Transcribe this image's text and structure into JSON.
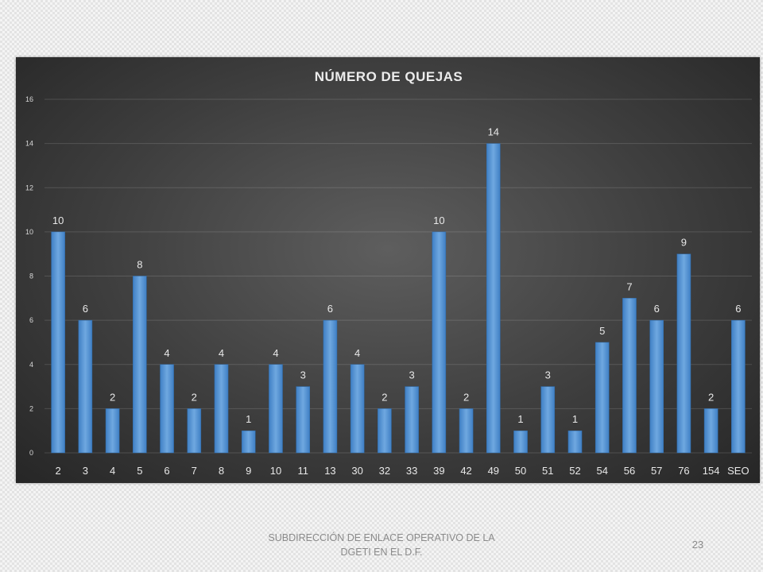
{
  "chart_data": {
    "type": "bar",
    "title": "NÚMERO DE QUEJAS",
    "categories": [
      "2",
      "3",
      "4",
      "5",
      "6",
      "7",
      "8",
      "9",
      "10",
      "11",
      "13",
      "30",
      "32",
      "33",
      "39",
      "42",
      "49",
      "50",
      "51",
      "52",
      "54",
      "56",
      "57",
      "76",
      "154",
      "SEO"
    ],
    "values": [
      10,
      6,
      2,
      8,
      4,
      2,
      4,
      1,
      4,
      3,
      6,
      4,
      2,
      3,
      10,
      2,
      14,
      1,
      3,
      1,
      5,
      7,
      6,
      9,
      2,
      6
    ],
    "ylim": [
      0,
      16
    ],
    "yticks": [
      0,
      2,
      4,
      6,
      8,
      10,
      12,
      14,
      16
    ],
    "grid": true,
    "legend": "none",
    "data_labels": true,
    "bar_color": "#5b9bd5",
    "background": "#404040"
  },
  "footer": {
    "line1": "SUBDIRECCIÓN DE ENLACE OPERATIVO DE LA",
    "line2": "DGETI EN EL D.F.",
    "page_number": "23"
  }
}
